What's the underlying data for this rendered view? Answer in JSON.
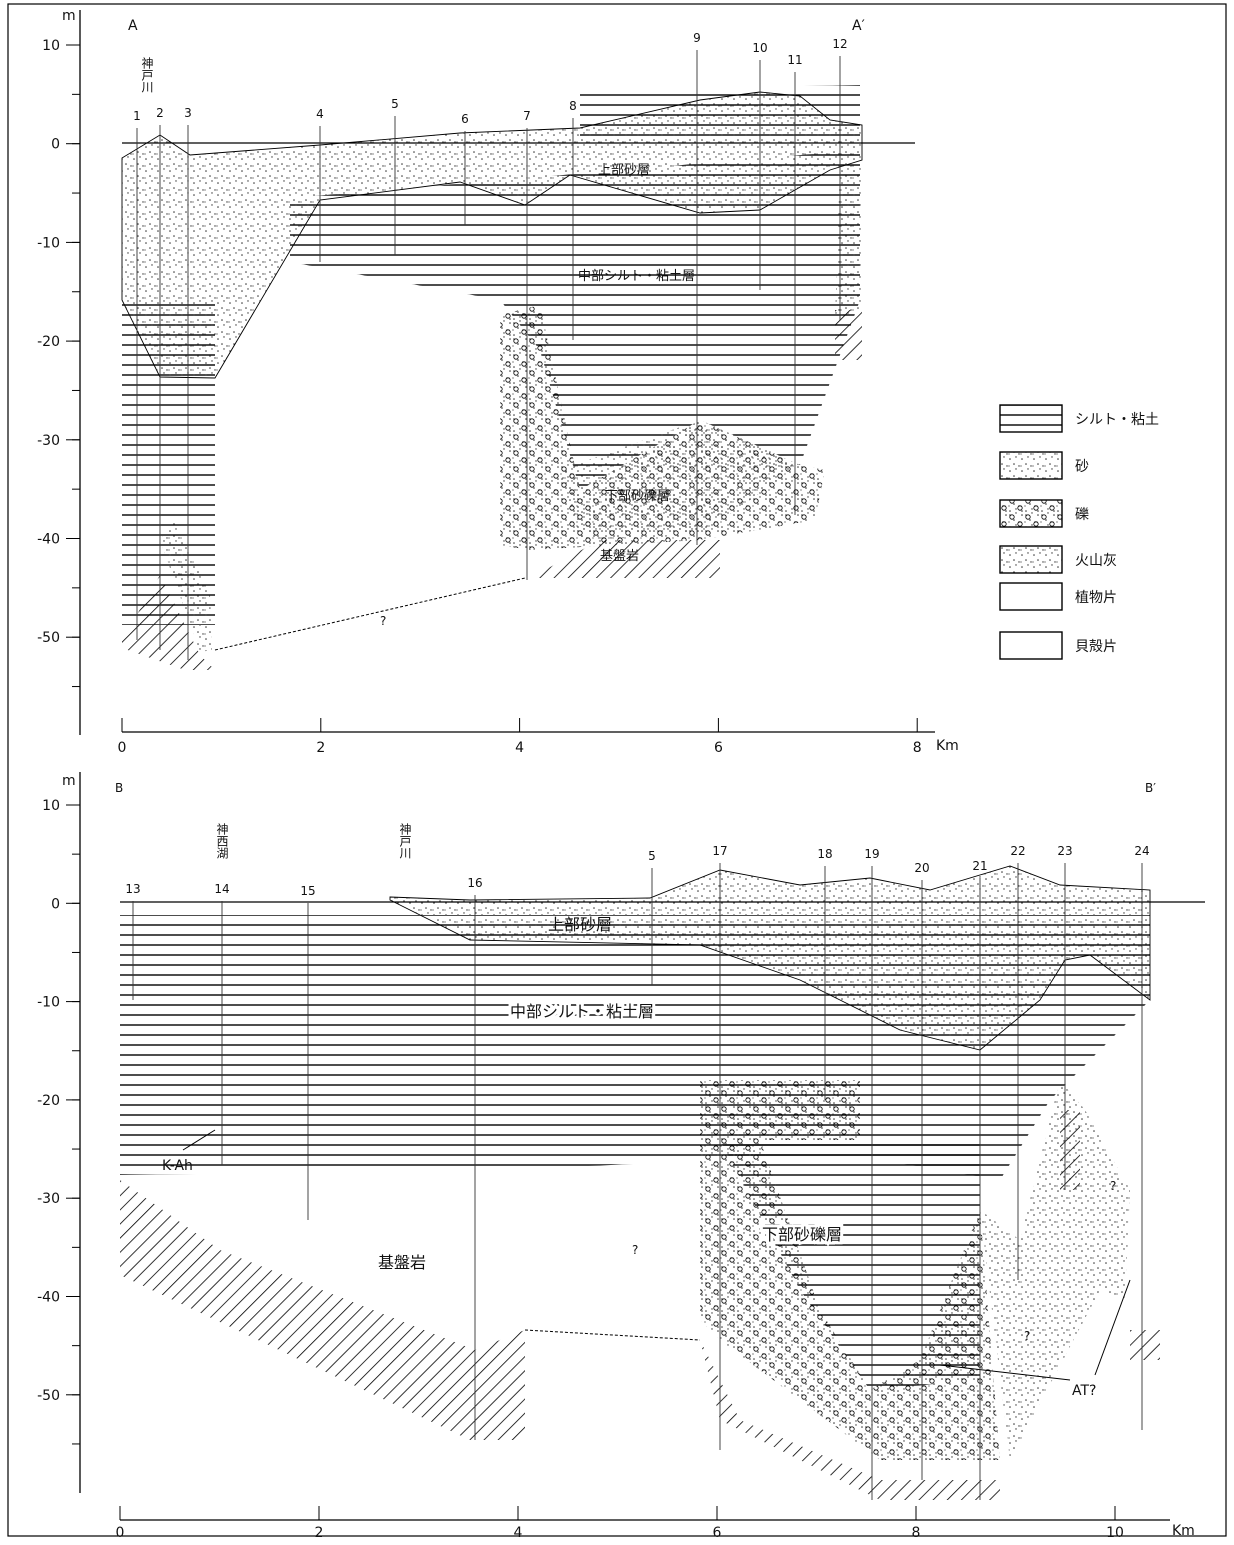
{
  "section_a": {
    "start": "A",
    "end": "A′",
    "y_unit": "m",
    "x_unit": "Km",
    "yticks": [
      10,
      0,
      -10,
      -20,
      -30,
      -40,
      -50
    ],
    "xticks": [
      0,
      2,
      4,
      6,
      8
    ],
    "boreholes": [
      "1",
      "2",
      "3",
      "4",
      "5",
      "6",
      "7",
      "8",
      "9",
      "10",
      "11",
      "12"
    ],
    "place": "神戸川",
    "layers": {
      "upper": "上部砂層",
      "middle": "中部シルト・粘土層",
      "lower": "下部砂礫層",
      "base": "基盤岩"
    },
    "unknown": "?"
  },
  "section_b": {
    "start": "B",
    "end": "B′",
    "y_unit": "m",
    "x_unit": "Km",
    "yticks": [
      10,
      0,
      -10,
      -20,
      -30,
      -40,
      -50
    ],
    "xticks": [
      0,
      2,
      4,
      6,
      8,
      10
    ],
    "boreholes": [
      "13",
      "14",
      "15",
      "16",
      "5",
      "17",
      "18",
      "19",
      "20",
      "21",
      "22",
      "23",
      "24"
    ],
    "places": [
      "神西湖",
      "神戸川"
    ],
    "layers": {
      "upper": "上部砂層",
      "middle": "中部シルト・粘土層",
      "lower": "下部砂礫層",
      "base": "基盤岩"
    },
    "markers": [
      "K-Ah",
      "AT?"
    ],
    "unknown": "?"
  },
  "legend": [
    "シルト・粘土",
    "砂",
    "礫",
    "火山灰",
    "植物片",
    "貝殻片"
  ]
}
